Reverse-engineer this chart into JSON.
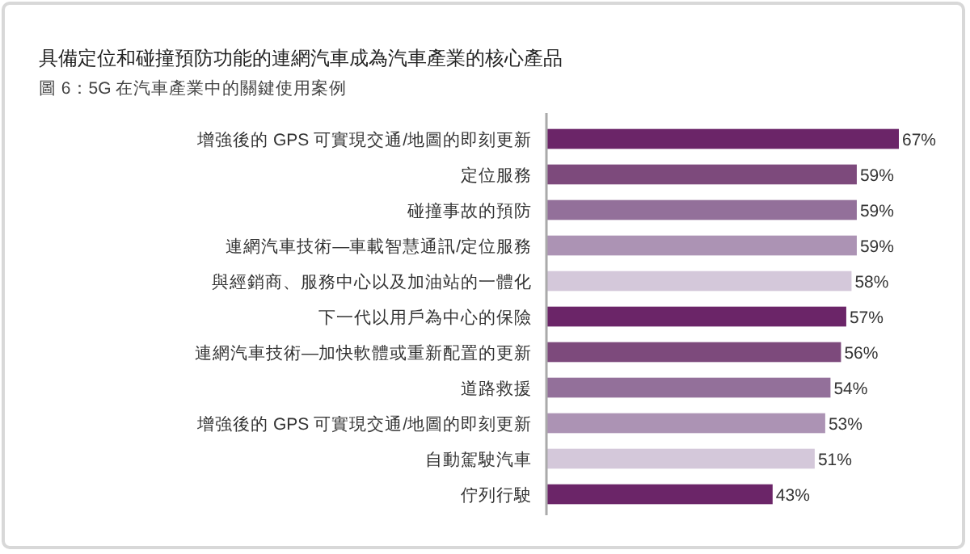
{
  "chart_data": {
    "type": "bar",
    "orientation": "horizontal",
    "title": "具備定位和碰撞預防功能的連網汽車成為汽車產業的核心產品",
    "subtitle": "圖 6：5G 在汽車產業中的關鍵使用案例",
    "categories": [
      "增強後的 GPS 可實現交通/地圖的即刻更新",
      "定位服務",
      "碰撞事故的預防",
      "連網汽車技術—車載智慧通訊/定位服務",
      "與經銷商、服務中心以及加油站的一體化",
      "下一代以用戶為中心的保險",
      "連網汽車技術—加快軟體或重新配置的更新",
      "道路救援",
      "增強後的 GPS 可實現交通/地圖的即刻更新",
      "自動駕駛汽車",
      "佇列行駛"
    ],
    "values": [
      67,
      59,
      59,
      59,
      58,
      57,
      56,
      54,
      53,
      51,
      43
    ],
    "value_labels": [
      "67%",
      "59%",
      "59%",
      "59%",
      "58%",
      "57%",
      "56%",
      "54%",
      "53%",
      "51%",
      "43%"
    ],
    "colors": [
      "#6b2568",
      "#7d4a7c",
      "#93709a",
      "#ac93b4",
      "#d4c8da",
      "#6b2568",
      "#7d4a7c",
      "#93709a",
      "#ac93b4",
      "#d4c8da",
      "#6b2568"
    ],
    "stacked": false
  }
}
